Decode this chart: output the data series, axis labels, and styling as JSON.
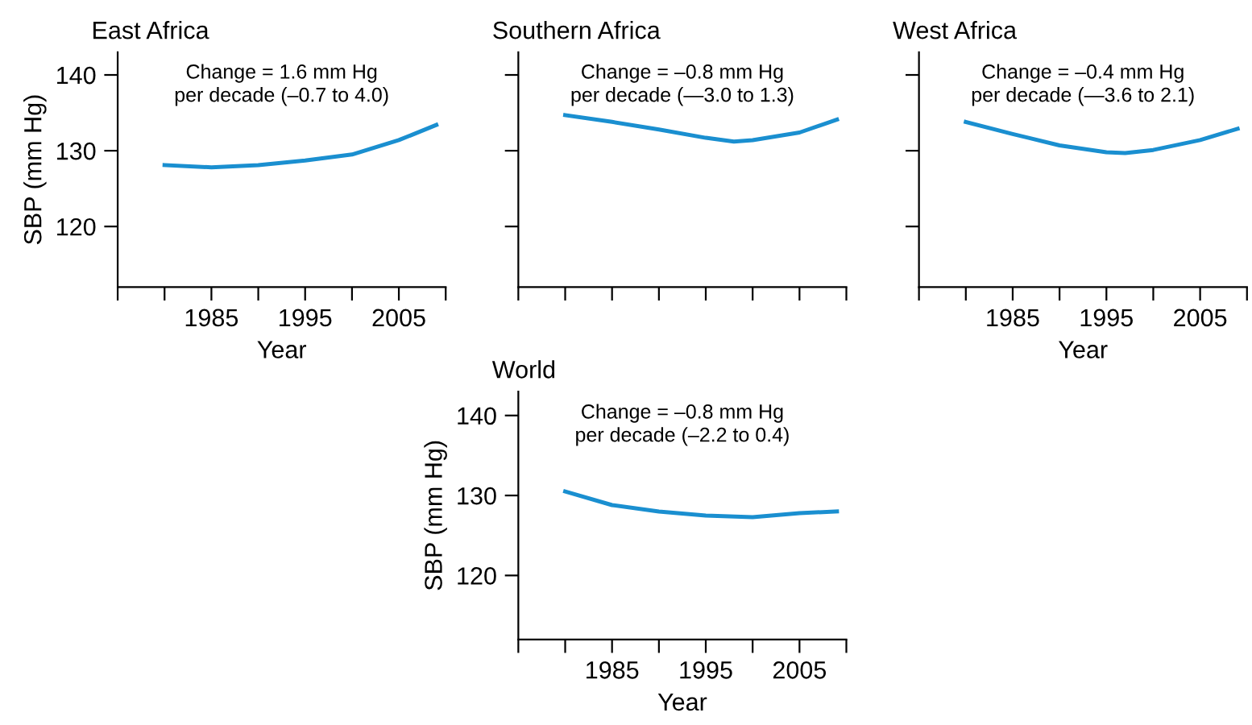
{
  "chart_data": [
    {
      "type": "line",
      "title": "East Africa",
      "xlabel": "Year",
      "ylabel": "SBP (mm Hg)",
      "x": [
        1980,
        1985,
        1990,
        1995,
        2000,
        2005,
        2009
      ],
      "series": [
        {
          "color": "#1a8fd0",
          "values": [
            128.1,
            127.8,
            128.1,
            128.7,
            129.5,
            131.4,
            133.4
          ]
        }
      ],
      "xlim": [
        1975,
        2010
      ],
      "ylim": [
        112,
        143
      ],
      "xticks": [
        {
          "value": 1975,
          "label": null
        },
        {
          "value": 1980,
          "label": null
        },
        1985,
        {
          "value": 1990,
          "label": null
        },
        1995,
        {
          "value": 2000,
          "label": null
        },
        2005,
        {
          "value": 2010,
          "label": null
        }
      ],
      "yticks": [
        120,
        130,
        140
      ],
      "annotations": [
        "Change = 1.6 mm Hg\nper decade (–0.7 to 4.0)"
      ],
      "marker": "none",
      "line_style": "solid",
      "grid": false
    },
    {
      "type": "line",
      "title": "Southern Africa",
      "x": [
        1980,
        1985,
        1990,
        1995,
        1998,
        2000,
        2005,
        2009
      ],
      "series": [
        {
          "color": "#1a8fd0",
          "values": [
            134.7,
            133.8,
            132.8,
            131.7,
            131.2,
            131.4,
            132.4,
            134.1
          ]
        }
      ],
      "xlim": [
        1975,
        2010
      ],
      "ylim": [
        112,
        143
      ],
      "xticks": [
        {
          "value": 1975,
          "label": null
        },
        {
          "value": 1980,
          "label": null
        },
        {
          "value": 1985,
          "label": null
        },
        {
          "value": 1990,
          "label": null
        },
        {
          "value": 1995,
          "label": null
        },
        {
          "value": 2000,
          "label": null
        },
        {
          "value": 2005,
          "label": null
        },
        {
          "value": 2010,
          "label": null
        }
      ],
      "yticks": [
        {
          "value": 120,
          "label": null
        },
        {
          "value": 130,
          "label": null
        },
        {
          "value": 140,
          "label": null
        }
      ],
      "annotations": [
        "Change = –0.8 mm Hg\nper decade (—3.0 to 1.3)"
      ],
      "tick_labels": false,
      "marker": "none",
      "line_style": "solid",
      "grid": false
    },
    {
      "type": "line",
      "title": "West Africa",
      "xlabel": "Year",
      "x": [
        1980,
        1985,
        1990,
        1995,
        1997,
        2000,
        2005,
        2009
      ],
      "series": [
        {
          "color": "#1a8fd0",
          "values": [
            133.8,
            132.2,
            130.7,
            129.8,
            129.7,
            130.1,
            131.4,
            132.9
          ]
        }
      ],
      "xlim": [
        1975,
        2010
      ],
      "ylim": [
        112,
        143
      ],
      "xticks": [
        {
          "value": 1975,
          "label": null
        },
        {
          "value": 1980,
          "label": null
        },
        1985,
        {
          "value": 1990,
          "label": null
        },
        1995,
        {
          "value": 2000,
          "label": null
        },
        2005,
        {
          "value": 2010,
          "label": null
        }
      ],
      "yticks": [
        {
          "value": 120,
          "label": null
        },
        {
          "value": 130,
          "label": null
        },
        {
          "value": 140,
          "label": null
        }
      ],
      "annotations": [
        "Change = –0.4 mm Hg\nper decade (—3.6 to 2.1)"
      ],
      "tick_labels": "x",
      "marker": "none",
      "line_style": "solid",
      "grid": false
    },
    {
      "type": "line",
      "title": "World",
      "xlabel": "Year",
      "ylabel": "SBP (mm Hg)",
      "x": [
        1980,
        1985,
        1990,
        1995,
        2000,
        2005,
        2009
      ],
      "series": [
        {
          "color": "#1a8fd0",
          "values": [
            130.5,
            128.8,
            128.0,
            127.5,
            127.3,
            127.8,
            128.0
          ]
        }
      ],
      "xlim": [
        1975,
        2010
      ],
      "ylim": [
        112,
        143
      ],
      "xticks": [
        {
          "value": 1975,
          "label": null
        },
        {
          "value": 1980,
          "label": null
        },
        1985,
        {
          "value": 1990,
          "label": null
        },
        1995,
        {
          "value": 2000,
          "label": null
        },
        2005,
        {
          "value": 2010,
          "label": null
        }
      ],
      "yticks": [
        120,
        130,
        140
      ],
      "annotations": [
        "Change = –0.8 mm Hg\nper decade (–2.2 to 0.4)"
      ],
      "marker": "none",
      "line_style": "solid",
      "grid": false
    }
  ]
}
